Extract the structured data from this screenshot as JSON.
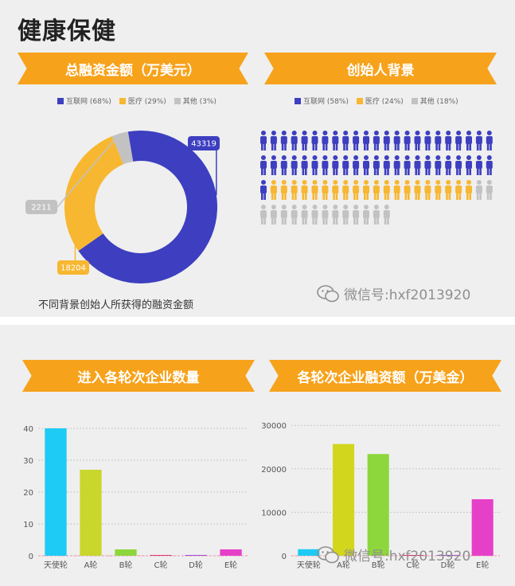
{
  "page": {
    "title": "健康保健"
  },
  "colors": {
    "internet": "#3d3fc0",
    "medical": "#f7b731",
    "other": "#c2c2c2",
    "ribbon": "#f7a21b"
  },
  "watermark": {
    "text": "微信号:hxf2013920",
    "icon": "wechat-icon"
  },
  "funding_donut": {
    "heading": "总融资金额（万美元）",
    "legend": [
      "互联网 (68%)",
      "医疗 (29%)",
      "其他 (3%)"
    ],
    "caption": "不同背景创始人所获得的融资金额"
  },
  "founders": {
    "heading": "创始人背景",
    "legend": [
      "互联网 (58%)",
      "医疗 (24%)",
      "其他 (18%)"
    ]
  },
  "rounds_count": {
    "heading": "进入各轮次企业数量"
  },
  "rounds_funding": {
    "heading": "各轮次企业融资额（万美金）"
  },
  "chart_data": [
    {
      "type": "pie",
      "categories": [
        "互联网",
        "医疗",
        "其他"
      ],
      "values": [
        43319,
        18204,
        2211
      ],
      "labels": [
        "43319",
        "18204",
        "2211"
      ],
      "colors": [
        "#3d3fc0",
        "#f7b731",
        "#c2c2c2"
      ],
      "title": "总融资金额（万美元）"
    },
    {
      "type": "table",
      "title": "创始人背景",
      "categories": [
        "互联网",
        "医疗",
        "其他"
      ],
      "values": [
        58,
        24,
        18
      ],
      "rows": [
        [
          "internet",
          "internet",
          "internet",
          "internet",
          "internet",
          "internet",
          "internet",
          "internet",
          "internet",
          "internet",
          "internet",
          "internet",
          "internet",
          "internet",
          "internet",
          "internet",
          "internet",
          "internet",
          "internet",
          "internet",
          "internet",
          "internet",
          "internet"
        ],
        [
          "internet",
          "internet",
          "internet",
          "internet",
          "internet",
          "internet",
          "internet",
          "internet",
          "internet",
          "internet",
          "internet",
          "internet",
          "internet",
          "internet",
          "internet",
          "internet",
          "internet",
          "internet",
          "internet",
          "internet",
          "internet",
          "internet",
          "internet"
        ],
        [
          "internet",
          "medical",
          "medical",
          "medical",
          "medical",
          "medical",
          "medical",
          "medical",
          "medical",
          "medical",
          "medical",
          "medical",
          "medical",
          "medical",
          "medical",
          "medical",
          "medical",
          "medical",
          "medical",
          "medical",
          "medical",
          "other",
          "other"
        ],
        [
          "other",
          "other",
          "other",
          "other",
          "other",
          "other",
          "other",
          "other",
          "other",
          "other",
          "other",
          "other",
          "other"
        ]
      ]
    },
    {
      "type": "bar",
      "title": "进入各轮次企业数量",
      "categories": [
        "天使轮",
        "A轮",
        "B轮",
        "C轮",
        "D轮",
        "E轮"
      ],
      "values": [
        40,
        27,
        2,
        0,
        0,
        2
      ],
      "colors": [
        "#1dcbf5",
        "#c9d62c",
        "#8dd63c",
        "#d63c7a",
        "#a04dd6",
        "#e640c9"
      ],
      "yticks": [
        0,
        10,
        20,
        30,
        40
      ],
      "ylim": [
        0,
        43
      ]
    },
    {
      "type": "bar",
      "title": "各轮次企业融资额（万美金）",
      "categories": [
        "天使轮",
        "A轮",
        "B轮",
        "C轮",
        "D轮",
        "E轮"
      ],
      "values": [
        1500,
        25700,
        23400,
        0,
        0,
        13000
      ],
      "colors": [
        "#1dcbf5",
        "#d2d61c",
        "#8dd63c",
        "#d63c7a",
        "#a04dd6",
        "#e640c9"
      ],
      "yticks": [
        0,
        10000,
        20000,
        30000
      ],
      "ylim": [
        0,
        31500
      ]
    }
  ]
}
